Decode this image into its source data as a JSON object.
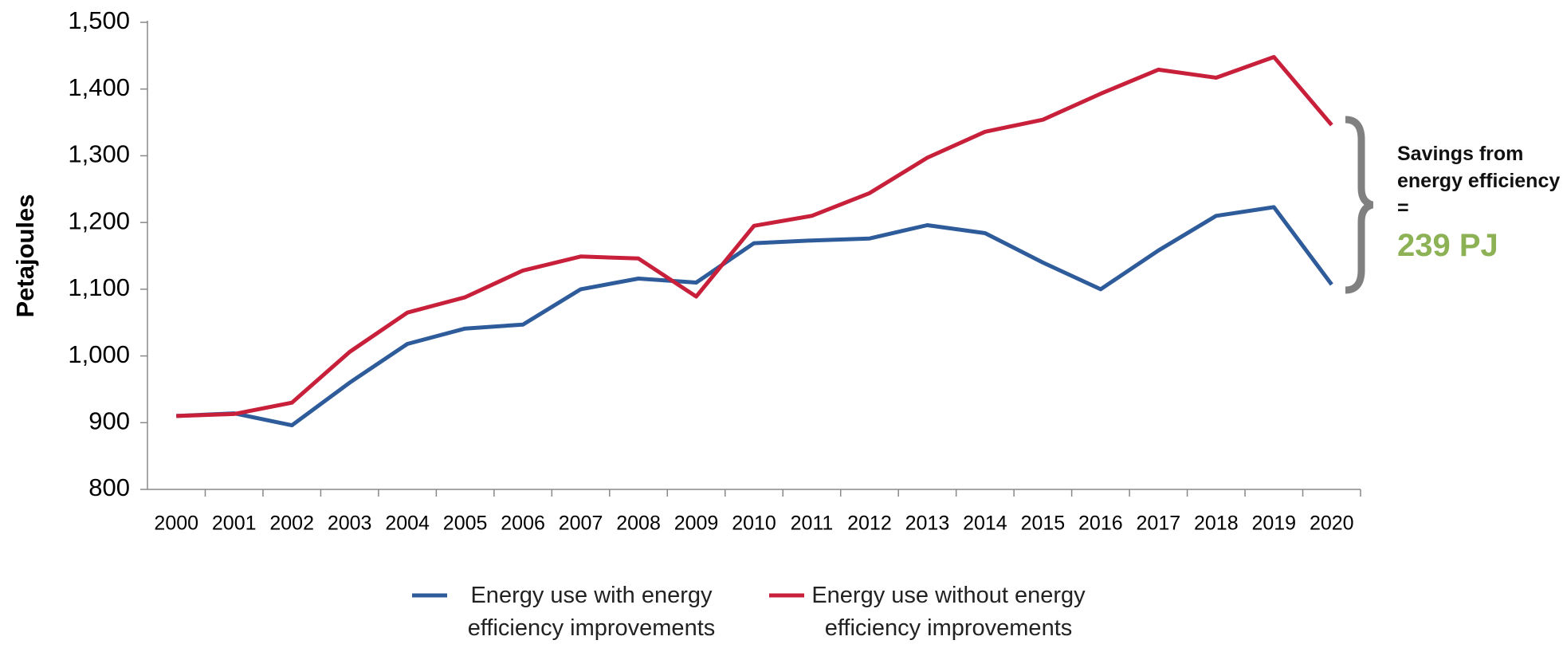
{
  "chart_data": {
    "type": "line",
    "y_label": "Petajoules",
    "categories": [
      "2000",
      "2001",
      "2002",
      "2003",
      "2004",
      "2005",
      "2006",
      "2007",
      "2008",
      "2009",
      "2010",
      "2011",
      "2012",
      "2013",
      "2014",
      "2015",
      "2016",
      "2017",
      "2018",
      "2019",
      "2020"
    ],
    "series": [
      {
        "name": "Energy use with energy efficiency improvements",
        "color": "#2e5b9a",
        "values": [
          910,
          914,
          896,
          960,
          1018,
          1041,
          1047,
          1100,
          1116,
          1110,
          1169,
          1173,
          1176,
          1196,
          1184,
          1140,
          1100,
          1158,
          1210,
          1223,
          1107
        ]
      },
      {
        "name": "Energy use without energy efficiency improvements",
        "color": "#c8203a",
        "values": [
          910,
          913,
          930,
          1006,
          1065,
          1088,
          1128,
          1149,
          1146,
          1089,
          1195,
          1210,
          1244,
          1297,
          1336,
          1354,
          1393,
          1429,
          1417,
          1448,
          1346
        ]
      }
    ],
    "ylim": [
      800,
      1500
    ],
    "yticks": [
      {
        "value": 800,
        "label": "800"
      },
      {
        "value": 900,
        "label": "900"
      },
      {
        "value": 1000,
        "label": "1,000"
      },
      {
        "value": 1100,
        "label": "1,100"
      },
      {
        "value": 1200,
        "label": "1,200"
      },
      {
        "value": 1300,
        "label": "1,300"
      },
      {
        "value": 1400,
        "label": "1,400"
      },
      {
        "value": 1500,
        "label": "1,500"
      }
    ],
    "annotation": {
      "text": "Savings from energy efficiency =",
      "value_text": "239 PJ",
      "value_color": "#8db255"
    },
    "grid": false,
    "legend": "bottom"
  }
}
